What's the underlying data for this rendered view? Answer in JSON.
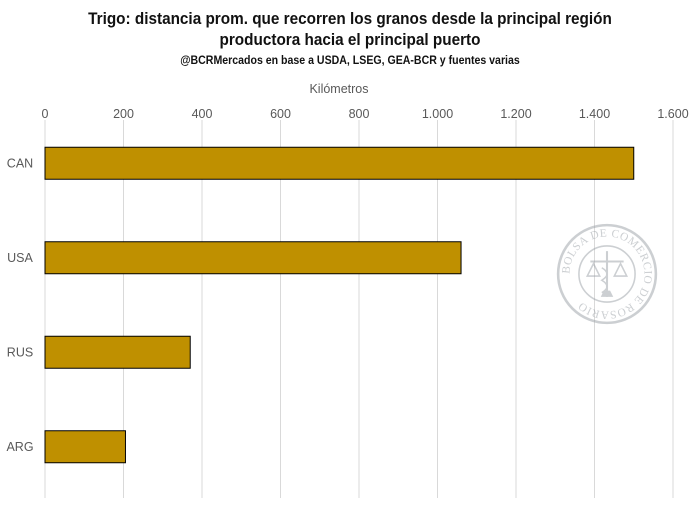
{
  "title_line1": "Trigo: distancia prom. que recorren los granos desde la principal región",
  "title_line2": "productora hacia el principal puerto",
  "subtitle": "@BCRMercados en base a USDA, LSEG, GEA-BCR y fuentes varias",
  "watermark_text": "BOLSA DE COMERCIO DE ROSARIO",
  "chart_data": {
    "type": "bar",
    "orientation": "horizontal",
    "categories": [
      "CAN",
      "USA",
      "RUS",
      "ARG"
    ],
    "values": [
      1500,
      1060,
      370,
      205
    ],
    "xlabel": "Kilómetros",
    "xlim": [
      0,
      1600
    ],
    "ticks": [
      0,
      200,
      400,
      600,
      800,
      1000,
      1200,
      1400,
      1600
    ],
    "tick_labels": [
      "0",
      "200",
      "400",
      "600",
      "800",
      "1.000",
      "1.200",
      "1.400",
      "1.600"
    ],
    "grid": true,
    "bar_color": "#BF9000",
    "bar_edge_color": "#000000",
    "grid_color": "#D9D9D9"
  }
}
